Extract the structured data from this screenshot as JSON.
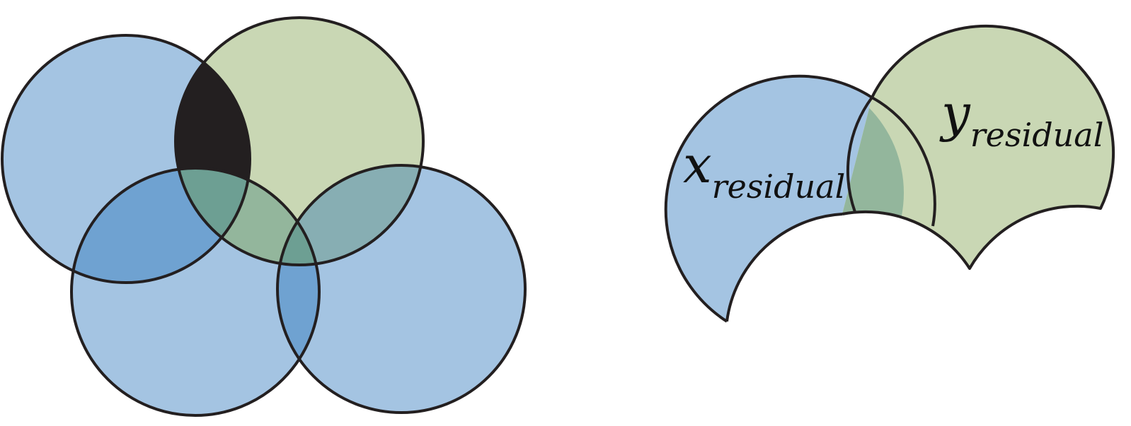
{
  "colors": {
    "blue": "#a4c4e2",
    "green": "#c9d7b4",
    "blue_overlap": "#6fa2d1",
    "blue_green_overlap": "#87aeb3",
    "green_overlap_light": "#93b69c",
    "center_overlap": "#6d9f93",
    "dark_overlap": "#231f20",
    "outline": "#231f20"
  },
  "labels": {
    "x_symbol": "x",
    "x_sub": "residual",
    "y_symbol": "y",
    "y_sub": "residual"
  }
}
